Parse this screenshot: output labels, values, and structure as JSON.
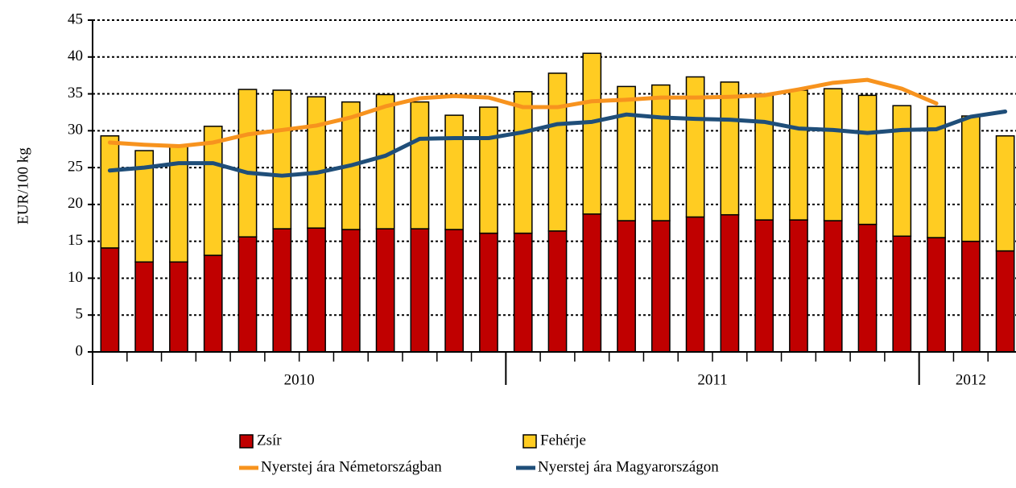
{
  "chart_data": {
    "type": "bar",
    "y_label": "EUR/100 kg",
    "categories": [
      null,
      null,
      null,
      null,
      null,
      null,
      null,
      null,
      null,
      null,
      null,
      null,
      null,
      null,
      null,
      null,
      null,
      null,
      null,
      null,
      null,
      null,
      null,
      null,
      null,
      null,
      null
    ],
    "groups": [
      {
        "label": "2010",
        "count": 12
      },
      {
        "label": "2011",
        "count": 12
      },
      {
        "label": "2012",
        "count": 3
      }
    ],
    "series": [
      {
        "name": "Zsír",
        "kind": "bar",
        "color": "#c00000",
        "values": [
          14.1,
          12.2,
          12.2,
          13.1,
          15.6,
          16.7,
          16.8,
          16.6,
          16.7,
          16.7,
          16.6,
          16.1,
          16.1,
          16.4,
          18.7,
          17.8,
          17.8,
          18.3,
          18.6,
          17.9,
          17.9,
          17.8,
          17.3,
          15.7,
          15.5,
          15.0,
          13.7
        ]
      },
      {
        "name": "Fehérje",
        "kind": "bar",
        "color": "#ffcc22",
        "values": [
          15.2,
          15.1,
          15.8,
          17.5,
          20.0,
          18.8,
          17.8,
          17.3,
          18.2,
          17.2,
          15.5,
          17.1,
          19.2,
          21.4,
          21.8,
          18.2,
          18.4,
          19.0,
          18.0,
          17.1,
          17.6,
          17.9,
          17.5,
          17.7,
          17.8,
          17.0,
          15.6
        ]
      },
      {
        "name": "Nyerstej ára Németországban",
        "kind": "line",
        "color": "#f7931e",
        "values": [
          28.4,
          28.1,
          27.9,
          28.4,
          29.5,
          30.1,
          30.7,
          31.8,
          33.3,
          34.4,
          34.7,
          34.5,
          33.2,
          33.2,
          34.0,
          34.2,
          34.5,
          34.5,
          34.6,
          34.8,
          35.6,
          36.5,
          36.9,
          35.7,
          33.7,
          null,
          null
        ]
      },
      {
        "name": "Nyerstej ára Magyarországon",
        "kind": "line",
        "color": "#1f4e79",
        "values": [
          24.6,
          25.0,
          25.6,
          25.6,
          24.3,
          23.9,
          24.3,
          25.3,
          26.6,
          28.9,
          29.0,
          29.0,
          29.8,
          30.9,
          31.2,
          32.2,
          31.8,
          31.6,
          31.5,
          31.2,
          30.3,
          30.1,
          29.7,
          30.1,
          30.2,
          31.9,
          32.6
        ]
      }
    ],
    "stacked": true,
    "ylim": [
      0,
      45
    ],
    "yticks": [
      0,
      5,
      10,
      15,
      20,
      25,
      30,
      35,
      40,
      45
    ],
    "grid": true
  }
}
